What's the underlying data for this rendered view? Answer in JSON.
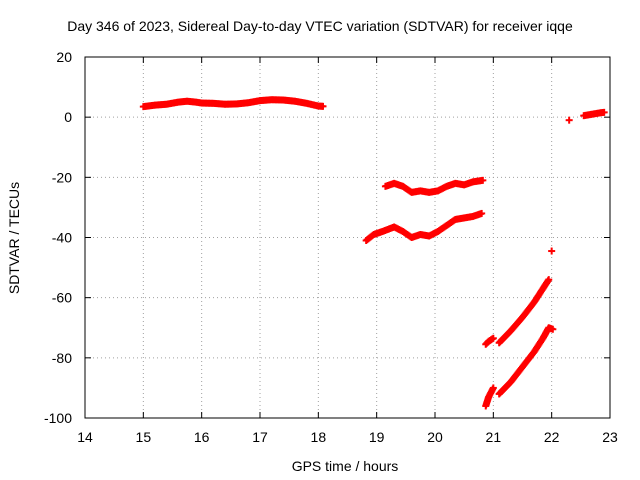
{
  "chart_data": {
    "type": "scatter",
    "title": "Day 346 of 2023, Sidereal Day-to-day VTEC variation (SDTVAR) for receiver iqqe",
    "xlabel": "GPS time / hours",
    "ylabel": "SDTVAR / TECUs",
    "xlim": [
      14,
      23
    ],
    "ylim": [
      -100,
      20
    ],
    "xticks": [
      "14",
      "15",
      "16",
      "17",
      "18",
      "19",
      "20",
      "21",
      "22",
      "23"
    ],
    "yticks": [
      "20",
      "0",
      "-20",
      "-40",
      "-60",
      "-80",
      "-100"
    ],
    "grid": true,
    "marker": "plus",
    "color": "#ff0000",
    "segments": [
      {
        "points": [
          [
            15.0,
            3.5
          ],
          [
            15.2,
            4.0
          ],
          [
            15.4,
            4.3
          ],
          [
            15.6,
            5.0
          ],
          [
            15.75,
            5.3
          ],
          [
            15.9,
            5.0
          ],
          [
            16.0,
            4.7
          ],
          [
            16.2,
            4.6
          ],
          [
            16.4,
            4.3
          ],
          [
            16.6,
            4.4
          ],
          [
            16.8,
            4.8
          ],
          [
            17.0,
            5.5
          ],
          [
            17.2,
            5.8
          ],
          [
            17.4,
            5.7
          ],
          [
            17.6,
            5.3
          ],
          [
            17.8,
            4.6
          ],
          [
            18.0,
            3.7
          ],
          [
            18.08,
            3.6
          ]
        ]
      },
      {
        "points": [
          [
            19.15,
            -23.0
          ],
          [
            19.3,
            -22.0
          ],
          [
            19.45,
            -23.0
          ],
          [
            19.6,
            -25.0
          ],
          [
            19.75,
            -24.5
          ],
          [
            19.9,
            -25.0
          ],
          [
            20.05,
            -24.5
          ],
          [
            20.2,
            -23.0
          ],
          [
            20.35,
            -22.0
          ],
          [
            20.5,
            -22.5
          ],
          [
            20.65,
            -21.5
          ],
          [
            20.82,
            -21.0
          ]
        ]
      },
      {
        "points": [
          [
            18.82,
            -41.0
          ],
          [
            18.95,
            -39.0
          ],
          [
            19.1,
            -38.0
          ],
          [
            19.3,
            -36.5
          ],
          [
            19.45,
            -38.0
          ],
          [
            19.6,
            -40.0
          ],
          [
            19.75,
            -39.0
          ],
          [
            19.9,
            -39.5
          ],
          [
            20.05,
            -38.0
          ],
          [
            20.2,
            -36.0
          ],
          [
            20.35,
            -34.0
          ],
          [
            20.5,
            -33.5
          ],
          [
            20.65,
            -33.0
          ],
          [
            20.8,
            -32.0
          ]
        ]
      },
      {
        "points": [
          [
            20.87,
            -75.5
          ],
          [
            20.92,
            -74.5
          ],
          [
            21.0,
            -73.5
          ]
        ]
      },
      {
        "points": [
          [
            21.1,
            -75.0
          ],
          [
            21.3,
            -71.0
          ],
          [
            21.5,
            -66.5
          ],
          [
            21.7,
            -61.5
          ],
          [
            21.85,
            -57.0
          ],
          [
            21.95,
            -54.0
          ]
        ]
      },
      {
        "points": [
          [
            20.87,
            -96.0
          ],
          [
            20.92,
            -93.0
          ],
          [
            21.0,
            -90.0
          ]
        ]
      },
      {
        "points": [
          [
            21.1,
            -92.0
          ],
          [
            21.3,
            -88.0
          ],
          [
            21.5,
            -83.0
          ],
          [
            21.7,
            -78.0
          ],
          [
            21.85,
            -73.5
          ],
          [
            21.95,
            -70.0
          ],
          [
            22.02,
            -70.5
          ]
        ]
      },
      {
        "points": [
          [
            22.0,
            -44.5
          ]
        ]
      },
      {
        "points": [
          [
            22.3,
            -1.0
          ]
        ]
      },
      {
        "points": [
          [
            22.55,
            0.5
          ],
          [
            22.7,
            1.0
          ],
          [
            22.85,
            1.5
          ],
          [
            22.9,
            1.6
          ]
        ]
      }
    ]
  }
}
